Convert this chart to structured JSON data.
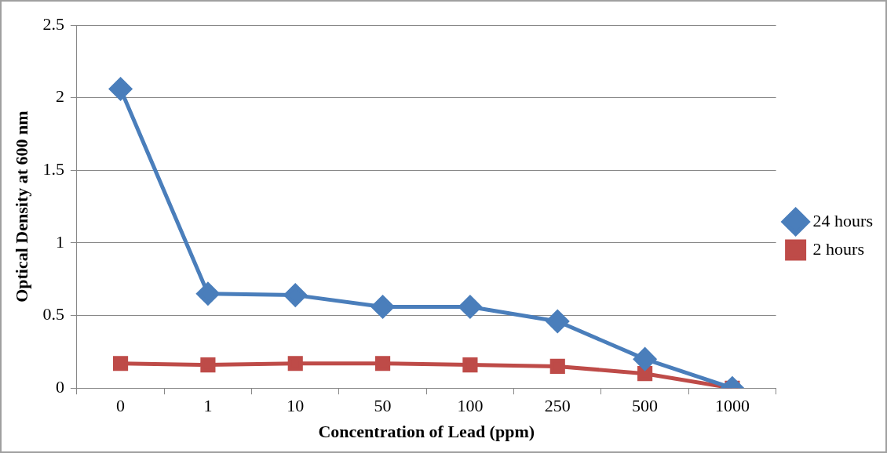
{
  "chart_data": {
    "type": "line",
    "xlabel": "Concentration of Lead (ppm)",
    "ylabel": "Optical Density at 600 nm",
    "categories": [
      "0",
      "1",
      "10",
      "50",
      "100",
      "250",
      "500",
      "1000"
    ],
    "series": [
      {
        "name": "24 hours",
        "color": "#4a7ebb",
        "marker": "diamond",
        "values": [
          2.06,
          0.65,
          0.64,
          0.56,
          0.56,
          0.46,
          0.2,
          0
        ]
      },
      {
        "name": "2 hours",
        "color": "#be4b48",
        "marker": "square",
        "values": [
          0.17,
          0.16,
          0.17,
          0.17,
          0.16,
          0.15,
          0.1,
          0
        ]
      }
    ],
    "ylim": [
      0,
      2.5
    ],
    "yticks": [
      0,
      0.5,
      1,
      1.5,
      2,
      2.5
    ],
    "grid": "y",
    "legend": "right",
    "line_style": "solid"
  }
}
